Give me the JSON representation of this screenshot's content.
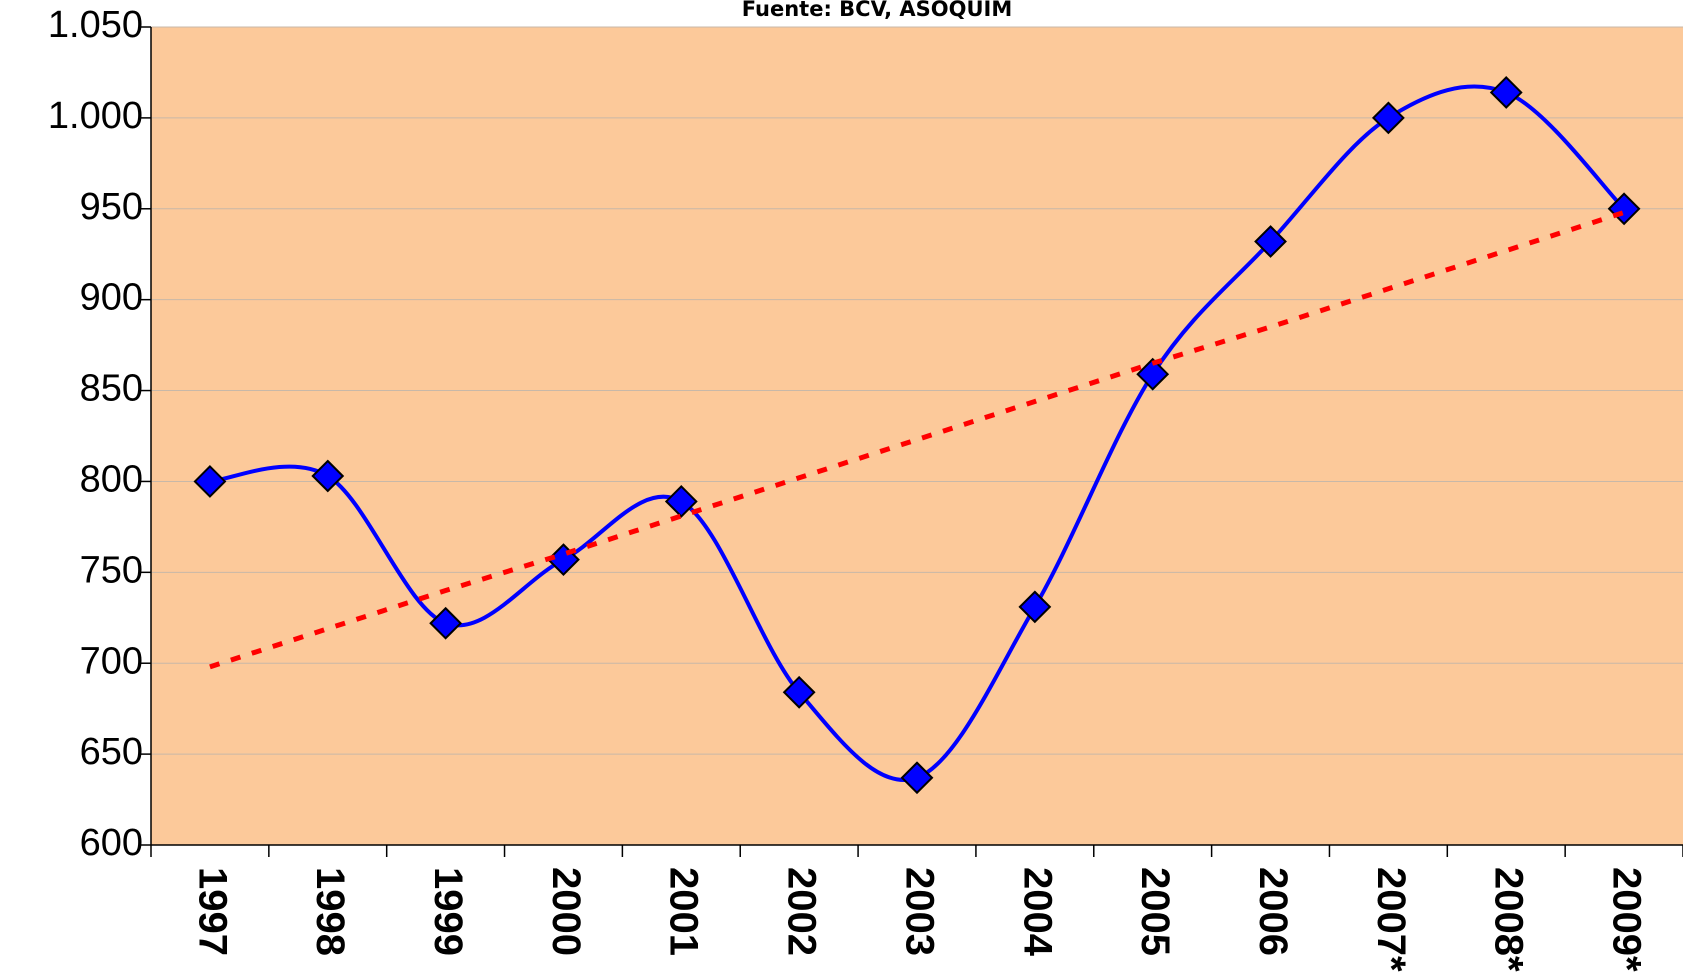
{
  "chart_data": {
    "type": "line",
    "title": "Fuente: BCV, ASOQUIM",
    "categories": [
      "1997",
      "1998",
      "1999",
      "2000",
      "2001",
      "2002",
      "2003",
      "2004",
      "2005",
      "2006",
      "2007*",
      "2008*",
      "2009*"
    ],
    "series": [
      {
        "color": "#0000ff",
        "marker_color": "#0000ff",
        "smooth": true,
        "values": [
          800,
          803,
          722,
          757,
          789,
          684,
          637,
          731,
          859,
          932,
          1000,
          1014,
          950
        ]
      },
      {
        "color": "#ff0000",
        "dashed": true,
        "values": [
          698,
          719,
          740,
          760,
          781,
          802,
          823,
          844,
          865,
          885,
          906,
          927,
          948
        ]
      }
    ],
    "ylim": [
      600,
      1050
    ],
    "yticks": [
      600,
      650,
      700,
      750,
      800,
      850,
      900,
      950,
      {
        "value": 1000,
        "label": "1.000"
      },
      {
        "value": 1050,
        "label": "1.050"
      }
    ],
    "grid": true,
    "background": "#fcc99a"
  }
}
